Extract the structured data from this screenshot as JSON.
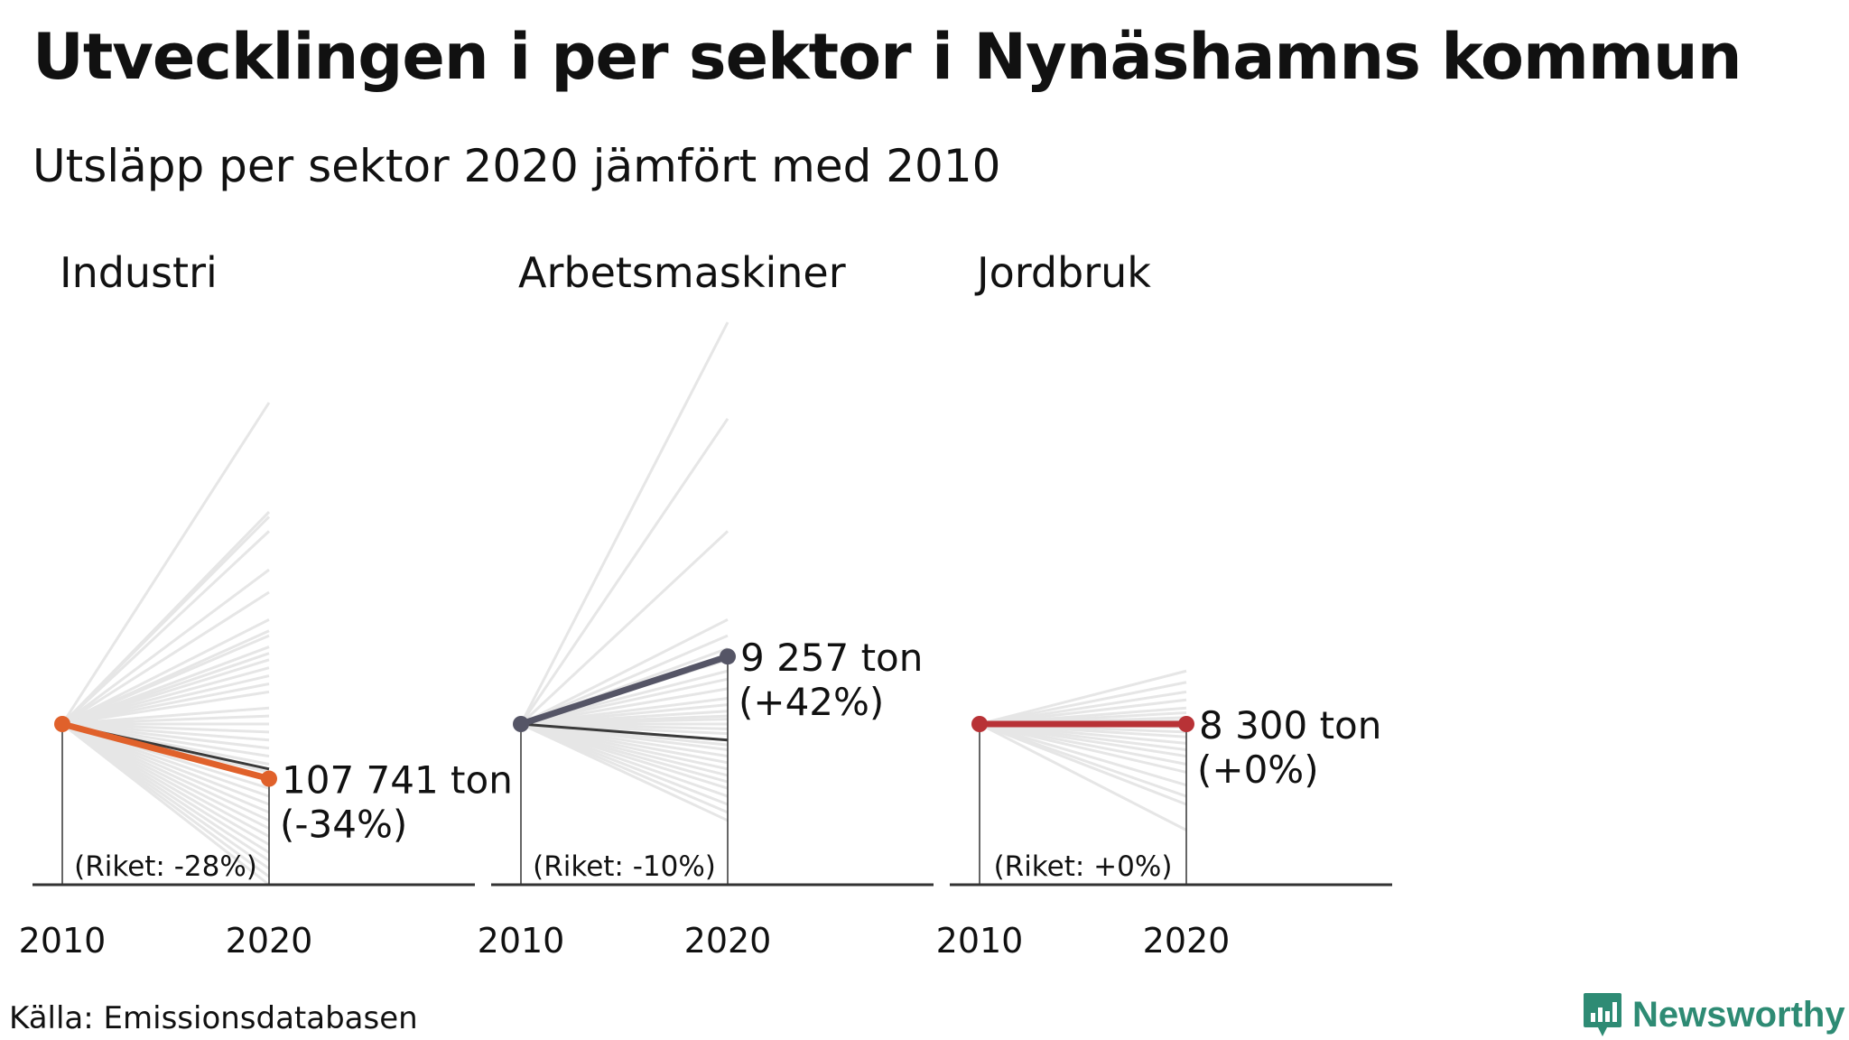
{
  "title": "Utvecklingen i per sektor i Nynäshamns kommun",
  "subtitle": "Utsläpp per sektor 2020 jämfört med 2010",
  "source": "Källa: Emissionsdatabasen",
  "brand": {
    "name": "Newsworthy",
    "icon": "newsworthy-logo-icon",
    "color": "#2e8b74"
  },
  "chart_data": [
    {
      "type": "line",
      "sector": "Industri",
      "x": [
        "2010",
        "2020"
      ],
      "highlight": {
        "value_label": "107 741 ton",
        "change_label": "(-34%)",
        "change": -0.34,
        "color": "#e0612b"
      },
      "national": {
        "label": "(Riket: -28%)",
        "change": -0.28,
        "color": "#3a3a3a"
      },
      "other_municipalities_change": [
        2.0,
        1.32,
        1.29,
        1.2,
        0.96,
        0.82,
        0.65,
        0.58,
        0.55,
        0.48,
        0.44,
        0.4,
        0.35,
        0.3,
        0.25,
        0.2,
        0.1,
        0.05,
        0.0,
        -0.05,
        -0.1,
        -0.15,
        -0.2,
        -0.25,
        -0.3,
        -0.35,
        -0.4,
        -0.45,
        -0.5,
        -0.55,
        -0.6,
        -0.65,
        -0.7,
        -0.75,
        -0.8,
        -0.85,
        -0.9,
        -0.95,
        -1.0
      ],
      "ylim": [
        -1.0,
        2.1
      ]
    },
    {
      "type": "line",
      "sector": "Arbetsmaskiner",
      "x": [
        "2010",
        "2020"
      ],
      "highlight": {
        "value_label": "9 257 ton",
        "change_label": "(+42%)",
        "change": 0.42,
        "color": "#555566"
      },
      "national": {
        "label": "(Riket: -10%)",
        "change": -0.1,
        "color": "#3a3a3a"
      },
      "other_municipalities_change": [
        2.5,
        1.9,
        1.2,
        0.65,
        0.55,
        0.47,
        0.4,
        0.33,
        0.28,
        0.22,
        0.16,
        0.12,
        0.08,
        0.05,
        0.03,
        0.0,
        -0.03,
        -0.06,
        -0.1,
        -0.13,
        -0.16,
        -0.2,
        -0.24,
        -0.28,
        -0.32,
        -0.36,
        -0.4,
        -0.45,
        -0.5,
        -0.55,
        -0.6
      ],
      "ylim": [
        -1.0,
        2.1
      ]
    },
    {
      "type": "line",
      "sector": "Jordbruk",
      "x": [
        "2010",
        "2020"
      ],
      "highlight": {
        "value_label": "8 300 ton",
        "change_label": "(+0%)",
        "change": 0.0,
        "color": "#b83236"
      },
      "national": {
        "label": "(Riket: +0%)",
        "change": 0.0,
        "color": "#3a3a3a"
      },
      "other_municipalities_change": [
        0.33,
        0.26,
        0.2,
        0.15,
        0.1,
        0.07,
        0.04,
        0.02,
        0.0,
        -0.02,
        -0.05,
        -0.08,
        -0.12,
        -0.16,
        -0.2,
        -0.25,
        -0.3,
        -0.38,
        -0.45,
        -0.5,
        -0.66
      ],
      "ylim": [
        -1.0,
        2.1
      ]
    }
  ]
}
